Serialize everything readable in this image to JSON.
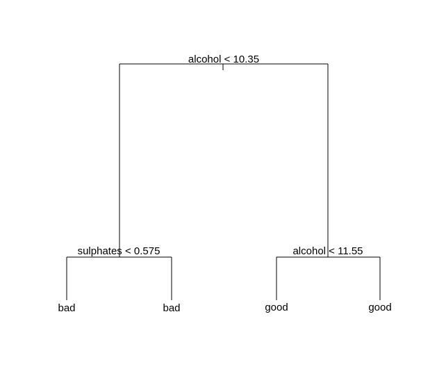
{
  "tree": {
    "root": {
      "label": "alcohol < 10.35",
      "left": {
        "label": "sulphates < 0.575",
        "left": {
          "leaf": "bad"
        },
        "right": {
          "leaf": "bad"
        }
      },
      "right": {
        "label": "alcohol < 11.55",
        "left": {
          "leaf": "good"
        },
        "right": {
          "leaf": "good"
        }
      }
    }
  },
  "colors": {
    "line": "#000000",
    "text": "#000000",
    "background": "#ffffff"
  }
}
